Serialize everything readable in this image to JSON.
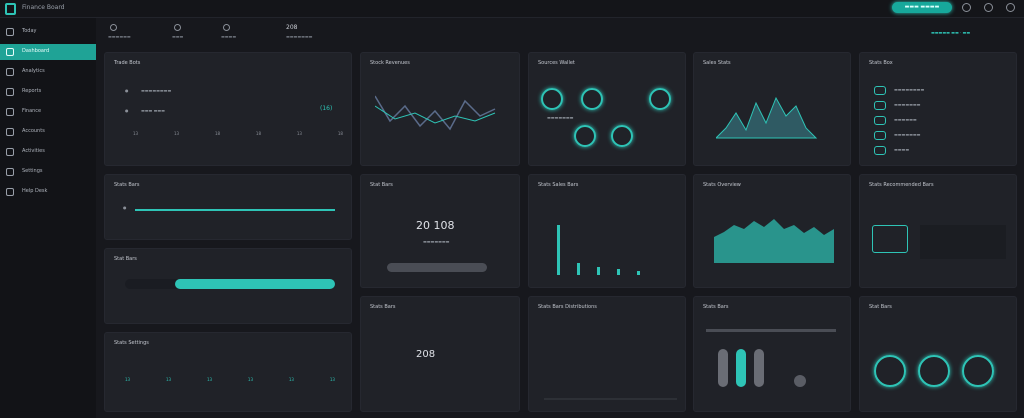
{
  "header": {
    "title": "Finance Board",
    "action_button": "▬▬▬ ▬▬▬▬"
  },
  "sidebar": {
    "items": [
      {
        "label": "Today",
        "active": false
      },
      {
        "label": "Dashboard",
        "active": true
      },
      {
        "label": "Analytics",
        "active": false
      },
      {
        "label": "Reports",
        "active": false
      },
      {
        "label": "Finance",
        "active": false
      },
      {
        "label": "Accounts",
        "active": false
      },
      {
        "label": "Activities",
        "active": false
      },
      {
        "label": "Settings",
        "active": false
      },
      {
        "label": "Help Desk",
        "active": false
      }
    ]
  },
  "stats": [
    {
      "value": "",
      "label": "▬▬▬▬▬▬"
    },
    {
      "value": "",
      "label": "▬▬▬"
    },
    {
      "value": "",
      "label": "▬▬▬▬"
    },
    {
      "value": "208",
      "label": "▬▬▬▬▬▬▬"
    }
  ],
  "stats_right": "▬▬▬▬▬ ▬▬ · ▬▬",
  "cards": {
    "c1": {
      "title": "Trade Bots",
      "row1": "▬▬▬▬▬▬▬▬",
      "row2": "▬▬▬ ▬▬▬",
      "row2_val": "(16)",
      "cols": [
        "13",
        "13",
        "18",
        "18",
        "13",
        "18"
      ]
    },
    "c2": {
      "title": "Stock Revenues"
    },
    "c3": {
      "title": "Sources Wallet",
      "cap": "▬▬▬▬▬▬▬"
    },
    "c4": {
      "title": "Sales Stats"
    },
    "c5": {
      "title": "Stats Box",
      "rows": [
        "▬▬▬▬▬▬▬▬",
        "▬▬▬▬▬▬▬",
        "▬▬▬▬▬▬",
        "▬▬▬▬▬▬▬",
        "▬▬▬▬"
      ]
    },
    "c6": {
      "title": "Stats Bars"
    },
    "c7": {
      "title": "Stat Bars",
      "value": "20 108",
      "sub": "▬▬▬▬▬▬▬"
    },
    "c8": {
      "title": "Stat Bars"
    },
    "c9": {
      "title": "Stats Sales Bars"
    },
    "c10": {
      "title": "Stats Overview"
    },
    "c11": {
      "title": "Stats Recommended Bars"
    },
    "c12": {
      "title": "Stats Bars",
      "value": "208"
    },
    "c13": {
      "title": "Stats Bars Distributions"
    },
    "c14": {
      "title": "Stats Bars"
    },
    "c15": {
      "title": "Stat Bars"
    },
    "c16": {
      "title": "Stats Settings",
      "nums": [
        "13",
        "13",
        "13",
        "13",
        "13",
        "13"
      ]
    }
  }
}
